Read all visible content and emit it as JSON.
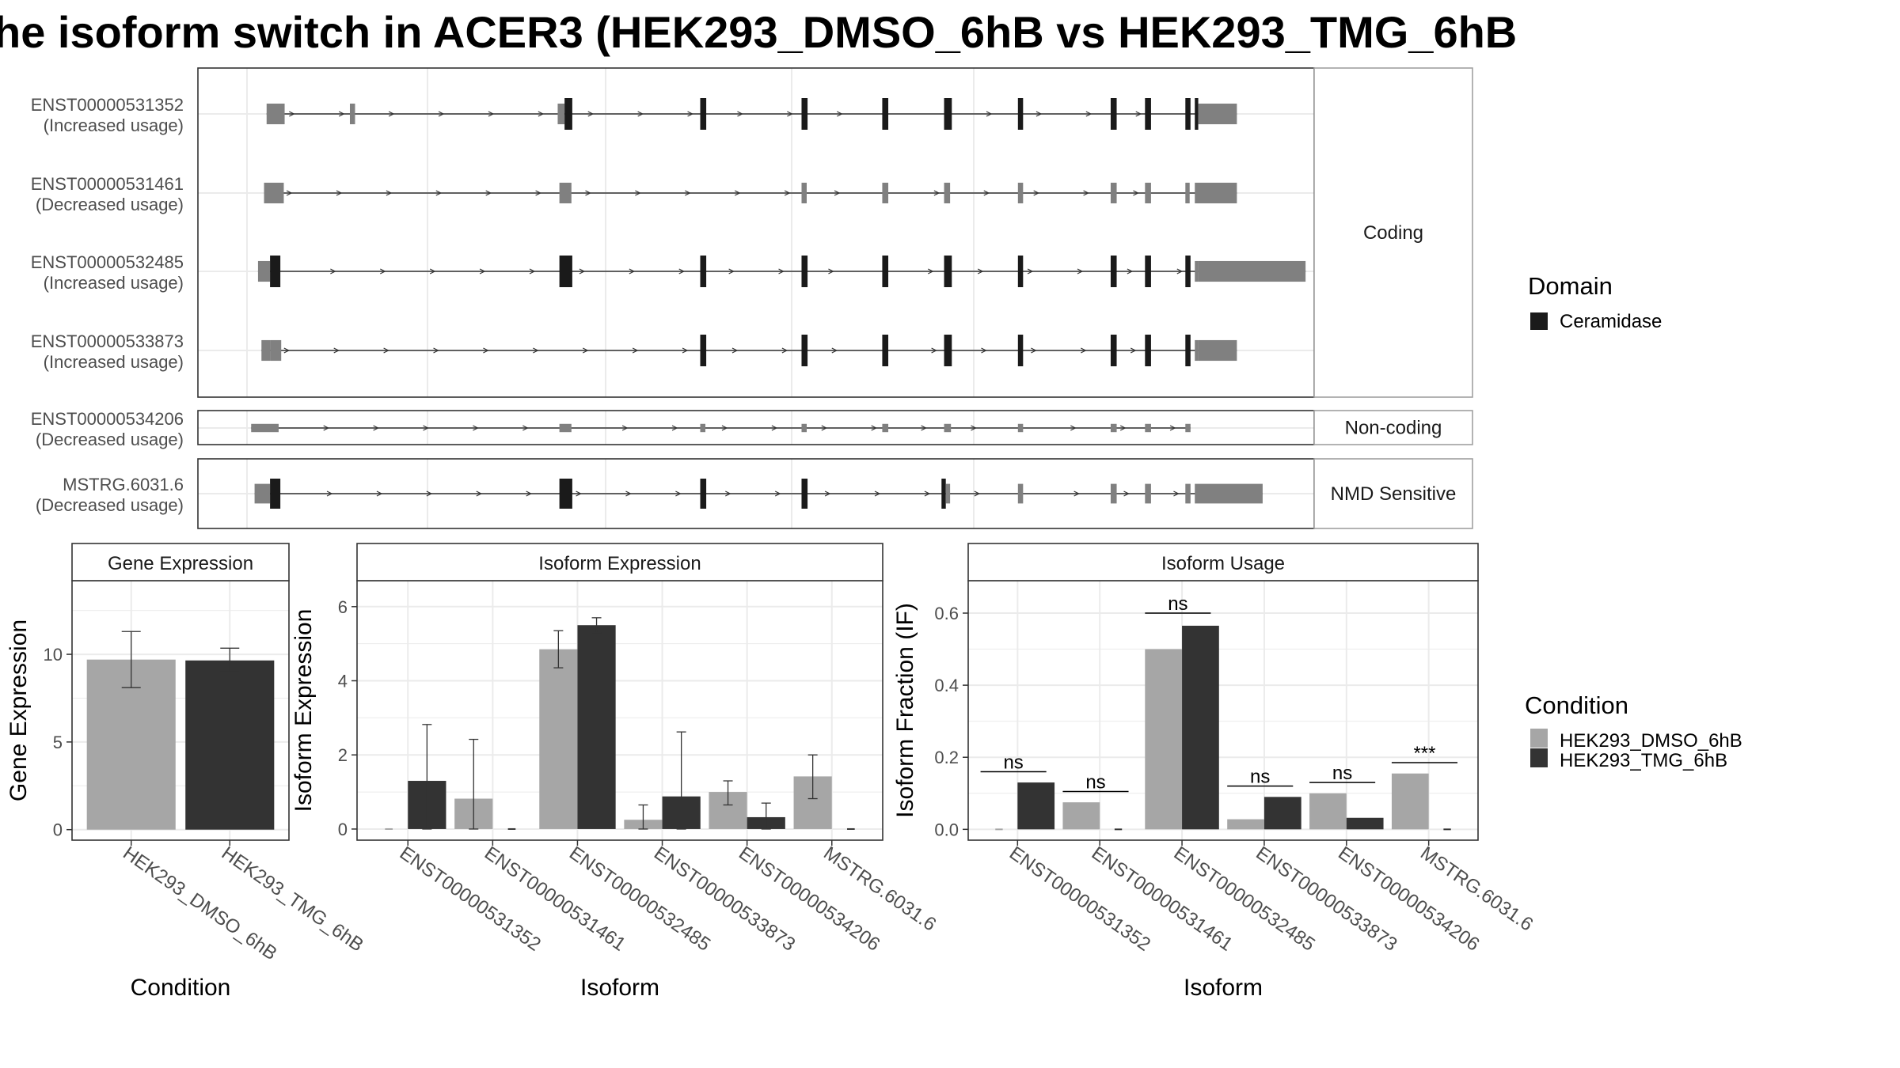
{
  "title": "he isoform switch in ACER3 (HEK293_DMSO_6hB vs HEK293_TMG_6hB",
  "colors": {
    "dmso": "#a6a6a6",
    "tmg": "#333333",
    "domain": "#1a1a1a",
    "utr": "#808080",
    "grid": "#ebebeb",
    "strip": "#ffffff"
  },
  "structure": {
    "x_range": [
      0,
      1300
    ],
    "isoforms": [
      {
        "id": "ENST00000531352",
        "usage": "(Increased usage)",
        "category": "Coding",
        "features": [
          {
            "type": "utr",
            "x0": 80,
            "x1": 101,
            "h": 0.45
          },
          {
            "type": "utr",
            "x0": 177,
            "x1": 183,
            "h": 0.45
          },
          {
            "type": "utr",
            "x0": 419,
            "x1": 427,
            "h": 0.45
          },
          {
            "type": "dom",
            "x0": 427,
            "x1": 436
          },
          {
            "type": "dom",
            "x0": 585,
            "x1": 592
          },
          {
            "type": "dom",
            "x0": 703,
            "x1": 710
          },
          {
            "type": "dom",
            "x0": 797,
            "x1": 804
          },
          {
            "type": "dom",
            "x0": 869,
            "x1": 878
          },
          {
            "type": "dom",
            "x0": 955,
            "x1": 961
          },
          {
            "type": "dom",
            "x0": 1063,
            "x1": 1070
          },
          {
            "type": "dom",
            "x0": 1103,
            "x1": 1110
          },
          {
            "type": "dom",
            "x0": 1150,
            "x1": 1156
          },
          {
            "type": "dom",
            "x0": 1161,
            "x1": 1165
          },
          {
            "type": "utr",
            "x0": 1165,
            "x1": 1210,
            "h": 0.45
          }
        ]
      },
      {
        "id": "ENST00000531461",
        "usage": "(Decreased usage)",
        "category": "Coding",
        "features": [
          {
            "type": "utr",
            "x0": 77,
            "x1": 100,
            "h": 0.45
          },
          {
            "type": "utr",
            "x0": 421,
            "x1": 435,
            "h": 0.45
          },
          {
            "type": "utr",
            "x0": 703,
            "x1": 709,
            "h": 0.45
          },
          {
            "type": "utr",
            "x0": 797,
            "x1": 804,
            "h": 0.45
          },
          {
            "type": "utr",
            "x0": 869,
            "x1": 876,
            "h": 0.45
          },
          {
            "type": "utr",
            "x0": 955,
            "x1": 961,
            "h": 0.45
          },
          {
            "type": "utr",
            "x0": 1063,
            "x1": 1070,
            "h": 0.45
          },
          {
            "type": "utr",
            "x0": 1103,
            "x1": 1110,
            "h": 0.45
          },
          {
            "type": "utr",
            "x0": 1150,
            "x1": 1155,
            "h": 0.45
          },
          {
            "type": "utr",
            "x0": 1161,
            "x1": 1210,
            "h": 0.45
          }
        ]
      },
      {
        "id": "ENST00000532485",
        "usage": "(Increased usage)",
        "category": "Coding",
        "features": [
          {
            "type": "utr",
            "x0": 70,
            "x1": 84,
            "h": 0.45
          },
          {
            "type": "dom",
            "x0": 84,
            "x1": 96
          },
          {
            "type": "dom",
            "x0": 421,
            "x1": 436
          },
          {
            "type": "dom",
            "x0": 585,
            "x1": 592
          },
          {
            "type": "dom",
            "x0": 703,
            "x1": 710
          },
          {
            "type": "dom",
            "x0": 797,
            "x1": 804
          },
          {
            "type": "dom",
            "x0": 869,
            "x1": 878
          },
          {
            "type": "dom",
            "x0": 955,
            "x1": 961
          },
          {
            "type": "dom",
            "x0": 1063,
            "x1": 1070
          },
          {
            "type": "dom",
            "x0": 1103,
            "x1": 1110
          },
          {
            "type": "dom",
            "x0": 1150,
            "x1": 1156
          },
          {
            "type": "utr",
            "x0": 1161,
            "x1": 1165,
            "h": 0.45
          },
          {
            "type": "utr",
            "x0": 1165,
            "x1": 1290,
            "h": 0.45
          }
        ]
      },
      {
        "id": "ENST00000533873",
        "usage": "(Increased usage)",
        "category": "Coding",
        "features": [
          {
            "type": "utr",
            "x0": 74,
            "x1": 84,
            "h": 0.45
          },
          {
            "type": "utr",
            "x0": 84,
            "x1": 97,
            "h": 0.45
          },
          {
            "type": "dom",
            "x0": 585,
            "x1": 592
          },
          {
            "type": "dom",
            "x0": 703,
            "x1": 710
          },
          {
            "type": "dom",
            "x0": 797,
            "x1": 804
          },
          {
            "type": "dom",
            "x0": 869,
            "x1": 878
          },
          {
            "type": "dom",
            "x0": 955,
            "x1": 961
          },
          {
            "type": "dom",
            "x0": 1063,
            "x1": 1070
          },
          {
            "type": "dom",
            "x0": 1103,
            "x1": 1110
          },
          {
            "type": "dom",
            "x0": 1150,
            "x1": 1156
          },
          {
            "type": "utr",
            "x0": 1161,
            "x1": 1165,
            "h": 0.45
          },
          {
            "type": "utr",
            "x0": 1165,
            "x1": 1210,
            "h": 0.45
          }
        ]
      },
      {
        "id": "ENST00000534206",
        "usage": "(Decreased usage)",
        "category": "Non-coding",
        "features": [
          {
            "type": "utr",
            "x0": 62,
            "x1": 94,
            "h": 0.45
          },
          {
            "type": "utr",
            "x0": 421,
            "x1": 435,
            "h": 0.45
          },
          {
            "type": "utr",
            "x0": 585,
            "x1": 591,
            "h": 0.45
          },
          {
            "type": "utr",
            "x0": 703,
            "x1": 709,
            "h": 0.45
          },
          {
            "type": "utr",
            "x0": 797,
            "x1": 804,
            "h": 0.45
          },
          {
            "type": "utr",
            "x0": 869,
            "x1": 877,
            "h": 0.45
          },
          {
            "type": "utr",
            "x0": 955,
            "x1": 961,
            "h": 0.45
          },
          {
            "type": "utr",
            "x0": 1063,
            "x1": 1070,
            "h": 0.45
          },
          {
            "type": "utr",
            "x0": 1103,
            "x1": 1110,
            "h": 0.45
          },
          {
            "type": "utr",
            "x0": 1150,
            "x1": 1156,
            "h": 0.45
          }
        ]
      },
      {
        "id": "MSTRG.6031.6",
        "usage": "(Decreased usage)",
        "category": "NMD Sensitive",
        "features": [
          {
            "type": "utr",
            "x0": 66,
            "x1": 84,
            "h": 0.45
          },
          {
            "type": "dom",
            "x0": 84,
            "x1": 96
          },
          {
            "type": "dom",
            "x0": 421,
            "x1": 436
          },
          {
            "type": "dom",
            "x0": 585,
            "x1": 592
          },
          {
            "type": "dom",
            "x0": 703,
            "x1": 710
          },
          {
            "type": "dom",
            "x0": 866,
            "x1": 871
          },
          {
            "type": "utr",
            "x0": 871,
            "x1": 876,
            "h": 0.45
          },
          {
            "type": "utr",
            "x0": 955,
            "x1": 961,
            "h": 0.45
          },
          {
            "type": "utr",
            "x0": 1063,
            "x1": 1070,
            "h": 0.45
          },
          {
            "type": "utr",
            "x0": 1103,
            "x1": 1110,
            "h": 0.45
          },
          {
            "type": "utr",
            "x0": 1150,
            "x1": 1156,
            "h": 0.45
          },
          {
            "type": "utr",
            "x0": 1161,
            "x1": 1240,
            "h": 0.45
          }
        ]
      }
    ]
  },
  "legend_domain": {
    "title": "Domain",
    "items": [
      "Ceramidase"
    ]
  },
  "legend_condition": {
    "title": "Condition",
    "items": [
      "HEK293_DMSO_6hB",
      "HEK293_TMG_6hB"
    ]
  },
  "chart_data": [
    {
      "type": "bar",
      "title": "Gene Expression",
      "xlabel": "Condition",
      "ylabel": "Gene Expression",
      "ylim": [
        -0.6,
        14.2
      ],
      "yticks": [
        0,
        5,
        10
      ],
      "categories": [
        "HEK293_DMSO_6hB",
        "HEK293_TMG_6hB"
      ],
      "values": [
        9.7,
        9.65
      ],
      "err_low": [
        8.1,
        9.0
      ],
      "err_high": [
        11.3,
        10.35
      ],
      "fill": [
        "dmso",
        "tmg"
      ]
    },
    {
      "type": "bar",
      "title": "Isoform Expression",
      "xlabel": "Isoform",
      "ylabel": "Isoform Expression",
      "ylim": [
        -0.3,
        6.7
      ],
      "yticks": [
        0,
        2,
        4,
        6
      ],
      "categories": [
        "ENST00000531352",
        "ENST00000531461",
        "ENST00000532485",
        "ENST00000533873",
        "ENST00000534206",
        "MSTRG.6031.6"
      ],
      "series": [
        {
          "name": "HEK293_DMSO_6hB",
          "values": [
            0,
            0.82,
            4.85,
            0.25,
            1.0,
            1.42
          ],
          "err_low": [
            0,
            0,
            4.35,
            0,
            0.65,
            0.82
          ],
          "err_high": [
            0,
            2.42,
            5.35,
            0.65,
            1.3,
            2.0
          ]
        },
        {
          "name": "HEK293_TMG_6hB",
          "values": [
            1.3,
            0,
            5.5,
            0.88,
            0.32,
            0
          ],
          "err_low": [
            0,
            0,
            5.3,
            0,
            0,
            0
          ],
          "err_high": [
            2.82,
            0,
            5.7,
            2.62,
            0.7,
            0
          ]
        }
      ]
    },
    {
      "type": "bar",
      "title": "Isoform Usage",
      "xlabel": "Isoform",
      "ylabel": "Isoform Fraction (IF)",
      "ylim": [
        -0.03,
        0.69
      ],
      "yticks": [
        0,
        0.2,
        0.4,
        0.6
      ],
      "ytick_labels": [
        "0.0",
        "0.2",
        "0.4",
        "0.6"
      ],
      "categories": [
        "ENST00000531352",
        "ENST00000531461",
        "ENST00000532485",
        "ENST00000533873",
        "ENST00000534206",
        "MSTRG.6031.6"
      ],
      "series": [
        {
          "name": "HEK293_DMSO_6hB",
          "values": [
            0,
            0.075,
            0.5,
            0.028,
            0.1,
            0.155
          ]
        },
        {
          "name": "HEK293_TMG_6hB",
          "values": [
            0.13,
            0,
            0.565,
            0.09,
            0.032,
            0
          ]
        }
      ],
      "significance": [
        "ns",
        "ns",
        "ns",
        "ns",
        "ns",
        "***"
      ],
      "sig_y": [
        0.16,
        0.105,
        0.6,
        0.12,
        0.13,
        0.185
      ]
    }
  ]
}
